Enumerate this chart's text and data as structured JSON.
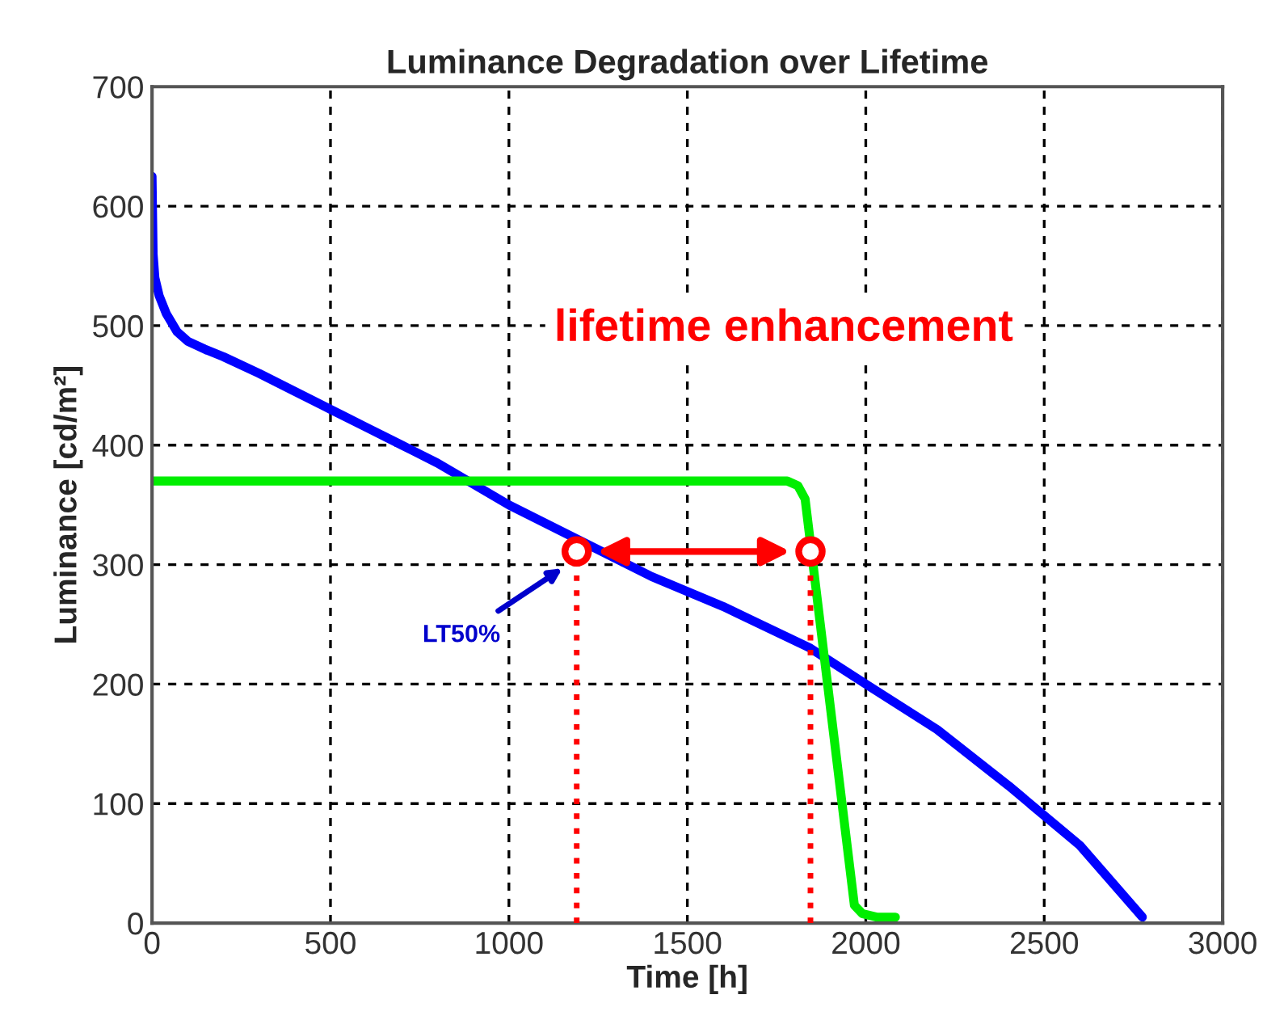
{
  "chart_data": {
    "type": "line",
    "title": "Luminance Degradation over Lifetime",
    "xlabel": "Time [h]",
    "ylabel": "Luminance [cd/m²]",
    "xlim": [
      0,
      3000
    ],
    "ylim": [
      0,
      700
    ],
    "xticks": [
      0,
      500,
      1000,
      1500,
      2000,
      2500,
      3000
    ],
    "yticks": [
      0,
      100,
      200,
      300,
      400,
      500,
      600,
      700
    ],
    "grid": true,
    "line_style": "solid",
    "series": [
      {
        "color": "#0000ff",
        "x": [
          0,
          3,
          8,
          20,
          40,
          70,
          100,
          150,
          200,
          300,
          400,
          500,
          600,
          700,
          800,
          1000,
          1400,
          1600,
          1845,
          2000,
          2200,
          2400,
          2600,
          2775
        ],
        "values": [
          625,
          560,
          540,
          525,
          510,
          495,
          487,
          480,
          474,
          460,
          445,
          430,
          415,
          400,
          385,
          350,
          290,
          265,
          230,
          200,
          162,
          115,
          65,
          5
        ]
      },
      {
        "color": "#00ee00",
        "x": [
          0,
          1780,
          1810,
          1830,
          1968,
          1990,
          2030,
          2083
        ],
        "values": [
          370,
          370,
          366,
          355,
          15,
          8,
          5,
          5
        ]
      },
      {
        "color": "#ff0000",
        "line_style": "dotted",
        "x": [
          1190,
          1190
        ],
        "values": [
          0,
          311
        ]
      },
      {
        "color": "#ff0000",
        "line_style": "dotted",
        "x": [
          1845,
          1845
        ],
        "values": [
          0,
          311
        ]
      },
      {
        "type": "scatter",
        "marker": "circle",
        "color": "#ff0000",
        "x": [
          1190,
          1845
        ],
        "values": [
          311,
          311
        ]
      }
    ],
    "annotations": [
      "lifetime enhancement",
      {
        "text": "LT50%",
        "x": 1150,
        "y": 297
      }
    ]
  }
}
